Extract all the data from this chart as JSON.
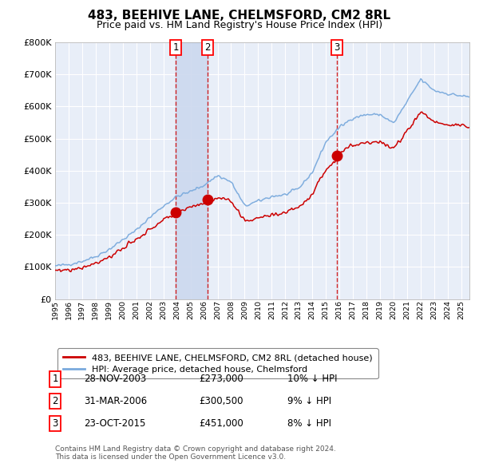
{
  "title": "483, BEEHIVE LANE, CHELMSFORD, CM2 8RL",
  "subtitle": "Price paid vs. HM Land Registry's House Price Index (HPI)",
  "red_label": "483, BEEHIVE LANE, CHELMSFORD, CM2 8RL (detached house)",
  "blue_label": "HPI: Average price, detached house, Chelmsford",
  "transactions": [
    {
      "num": 1,
      "date": "28-NOV-2003",
      "price": 273000,
      "hpi_diff": "10% ↓ HPI",
      "x": 2003.92
    },
    {
      "num": 2,
      "date": "31-MAR-2006",
      "price": 300500,
      "hpi_diff": "9% ↓ HPI",
      "x": 2006.25
    },
    {
      "num": 3,
      "date": "23-OCT-2015",
      "price": 451000,
      "hpi_diff": "8% ↓ HPI",
      "x": 2015.81
    }
  ],
  "footer_line1": "Contains HM Land Registry data © Crown copyright and database right 2024.",
  "footer_line2": "This data is licensed under the Open Government Licence v3.0.",
  "ylim": [
    0,
    800000
  ],
  "xlim_start": 1995.0,
  "xlim_end": 2025.6,
  "plot_bg": "#e8eef8",
  "grid_color": "#ffffff",
  "red_color": "#cc0000",
  "blue_color": "#7aaadd",
  "highlight_color": "#ccd8ee",
  "hpi_control_years": [
    1995,
    1996,
    1997,
    1998,
    1999,
    2000,
    2001,
    2002,
    2003,
    2004,
    2005,
    2006,
    2007,
    2008,
    2009,
    2010,
    2011,
    2012,
    2013,
    2014,
    2015,
    2016,
    2017,
    2018,
    2019,
    2020,
    2021,
    2022,
    2023,
    2024,
    2025.5
  ],
  "hpi_control_vals": [
    103000,
    108000,
    118000,
    133000,
    155000,
    185000,
    215000,
    255000,
    290000,
    320000,
    335000,
    355000,
    385000,
    365000,
    290000,
    305000,
    320000,
    325000,
    345000,
    395000,
    490000,
    535000,
    565000,
    575000,
    575000,
    548000,
    615000,
    685000,
    650000,
    640000,
    630000
  ]
}
